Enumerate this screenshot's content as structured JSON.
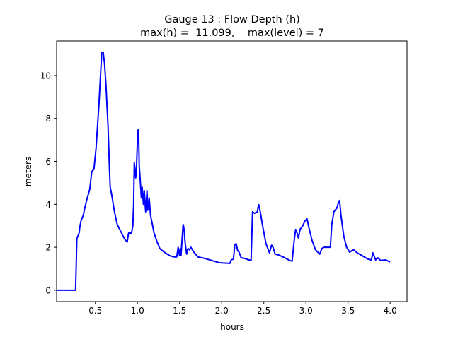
{
  "chart_data": {
    "type": "line",
    "title": "Gauge 13 : Flow Depth (h)",
    "subtitle": "max(h) =  11.099,    max(level) = 7",
    "xlabel": "hours",
    "ylabel": "meters",
    "xlim": [
      0.04,
      4.2
    ],
    "ylim": [
      -0.53,
      11.61
    ],
    "xticks": [
      0.5,
      1.0,
      1.5,
      2.0,
      2.5,
      3.0,
      3.5,
      4.0
    ],
    "xtick_labels": [
      "0.5",
      "1.0",
      "1.5",
      "2.0",
      "2.5",
      "3.0",
      "3.5",
      "4.0"
    ],
    "yticks": [
      0,
      2,
      4,
      6,
      8,
      10
    ],
    "ytick_labels": [
      "0",
      "2",
      "4",
      "6",
      "8",
      "10"
    ],
    "grid": false,
    "series": [
      {
        "name": "h",
        "color": "#0000ff",
        "x": [
          0.04,
          0.265,
          0.28,
          0.307,
          0.315,
          0.332,
          0.357,
          0.374,
          0.4,
          0.433,
          0.458,
          0.483,
          0.508,
          0.525,
          0.542,
          0.559,
          0.576,
          0.592,
          0.609,
          0.626,
          0.651,
          0.668,
          0.676,
          0.693,
          0.727,
          0.76,
          0.794,
          0.845,
          0.878,
          0.895,
          0.929,
          0.945,
          0.954,
          0.962,
          0.97,
          0.979,
          0.987,
          1.004,
          1.013,
          1.021,
          1.03,
          1.046,
          1.055,
          1.071,
          1.08,
          1.097,
          1.113,
          1.122,
          1.139,
          1.155,
          1.172,
          1.197,
          1.231,
          1.265,
          1.315,
          1.382,
          1.433,
          1.466,
          1.483,
          1.5,
          1.508,
          1.517,
          1.542,
          1.55,
          1.567,
          1.584,
          1.6,
          1.618,
          1.634,
          1.668,
          1.718,
          1.8,
          1.886,
          1.97,
          2.097,
          2.113,
          2.139,
          2.155,
          2.172,
          2.19,
          2.206,
          2.231,
          2.273,
          2.324,
          2.349,
          2.366,
          2.39,
          2.424,
          2.433,
          2.441,
          2.458,
          2.483,
          2.525,
          2.567,
          2.592,
          2.609,
          2.634,
          2.676,
          2.727,
          2.811,
          2.836,
          2.861,
          2.878,
          2.895,
          2.912,
          2.929,
          2.962,
          2.987,
          3.013,
          3.03,
          3.071,
          3.113,
          3.164,
          3.189,
          3.214,
          3.29,
          3.307,
          3.332,
          3.366,
          3.391,
          3.4,
          3.416,
          3.45,
          3.483,
          3.517,
          3.567,
          3.609,
          3.735,
          3.777,
          3.794,
          3.828,
          3.853,
          3.887,
          3.945,
          4.0
        ],
        "y": [
          0,
          0,
          2.4,
          2.66,
          2.93,
          3.26,
          3.49,
          3.82,
          4.24,
          4.7,
          5.53,
          5.63,
          6.6,
          7.6,
          8.6,
          9.9,
          11.05,
          11.099,
          10.56,
          9.57,
          7.6,
          5.62,
          4.8,
          4.47,
          3.65,
          3.06,
          2.8,
          2.4,
          2.24,
          2.66,
          2.66,
          3.0,
          3.98,
          5.95,
          5.63,
          5.23,
          5.6,
          7.43,
          7.5,
          5.79,
          5.3,
          4.3,
          4.8,
          4.0,
          4.64,
          3.65,
          4.64,
          3.72,
          4.3,
          3.49,
          3.16,
          2.66,
          2.27,
          1.94,
          1.78,
          1.61,
          1.55,
          1.55,
          2.0,
          1.61,
          1.94,
          1.61,
          3.06,
          2.93,
          2.17,
          1.68,
          1.94,
          1.88,
          2.0,
          1.78,
          1.55,
          1.48,
          1.38,
          1.28,
          1.25,
          1.41,
          1.45,
          2.1,
          2.17,
          1.84,
          1.78,
          1.51,
          1.48,
          1.41,
          1.38,
          3.65,
          3.58,
          3.65,
          3.88,
          3.98,
          3.65,
          3.06,
          2.17,
          1.74,
          2.1,
          2.0,
          1.68,
          1.64,
          1.55,
          1.38,
          1.35,
          2.34,
          2.83,
          2.66,
          2.43,
          2.83,
          3.0,
          3.22,
          3.32,
          3.0,
          2.34,
          1.88,
          1.68,
          1.94,
          2.0,
          2.0,
          3.06,
          3.65,
          3.82,
          4.14,
          4.18,
          3.49,
          2.5,
          2.0,
          1.78,
          1.88,
          1.74,
          1.45,
          1.41,
          1.74,
          1.41,
          1.51,
          1.38,
          1.41,
          1.32
        ]
      }
    ]
  }
}
